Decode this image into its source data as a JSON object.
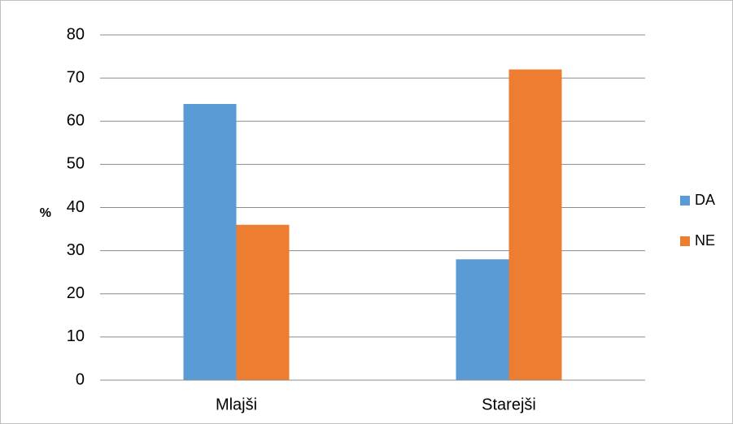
{
  "chart_data": {
    "type": "bar",
    "categories": [
      "Mlajši",
      "Starejši"
    ],
    "series": [
      {
        "name": "DA",
        "values": [
          64,
          28
        ],
        "color": "#5b9bd5"
      },
      {
        "name": "NE",
        "values": [
          36,
          72
        ],
        "color": "#ed7d31"
      }
    ],
    "title": "",
    "xlabel": "",
    "ylabel": "%",
    "ylim": [
      0,
      80
    ],
    "yticks": [
      0,
      10,
      20,
      30,
      40,
      50,
      60,
      70,
      80
    ],
    "grid": true,
    "legend": "right"
  }
}
